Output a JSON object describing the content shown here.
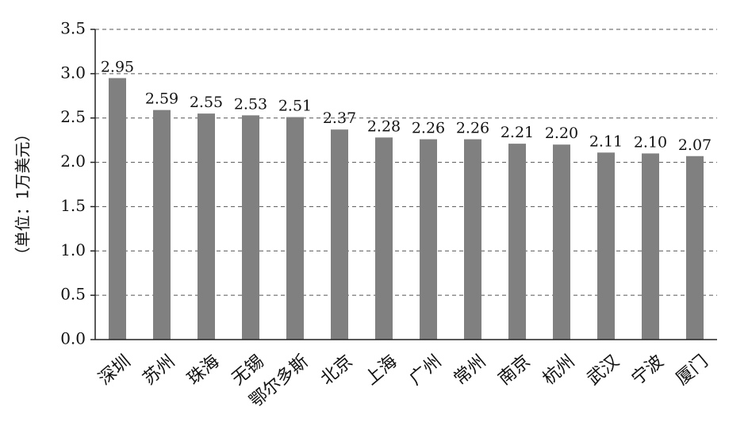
{
  "chart_data": {
    "type": "bar",
    "categories": [
      "深圳",
      "苏州",
      "珠海",
      "无锡",
      "鄂尔多斯",
      "北京",
      "上海",
      "广州",
      "常州",
      "南京",
      "杭州",
      "武汉",
      "宁波",
      "厦门"
    ],
    "values": [
      2.95,
      2.59,
      2.55,
      2.53,
      2.51,
      2.37,
      2.28,
      2.26,
      2.26,
      2.21,
      2.2,
      2.11,
      2.1,
      2.07
    ],
    "value_labels": [
      "2.95",
      "2.59",
      "2.55",
      "2.53",
      "2.51",
      "2.37",
      "2.28",
      "2.26",
      "2.26",
      "2.21",
      "2.20",
      "2.11",
      "2.10",
      "2.07"
    ],
    "title": "",
    "xlabel": "",
    "ylabel": "（单位：1万美元）",
    "ylim": [
      0,
      3.5
    ],
    "yticks": [
      "0.0",
      "0.5",
      "1.0",
      "1.5",
      "2.0",
      "2.5",
      "3.0",
      "3.5"
    ],
    "grid": true,
    "legend": "none",
    "bar_color": "#808080"
  }
}
